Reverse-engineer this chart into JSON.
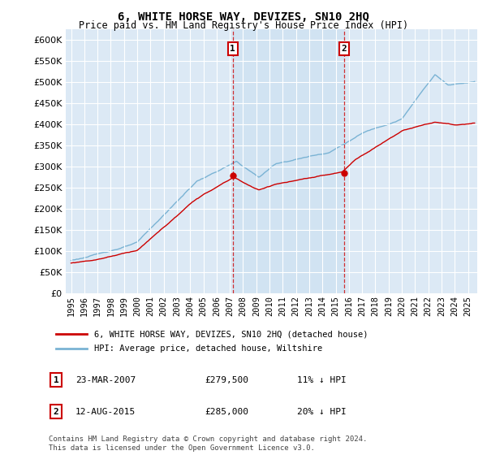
{
  "title": "6, WHITE HORSE WAY, DEVIZES, SN10 2HQ",
  "subtitle": "Price paid vs. HM Land Registry's House Price Index (HPI)",
  "ylabel_ticks": [
    0,
    50000,
    100000,
    150000,
    200000,
    250000,
    300000,
    350000,
    400000,
    450000,
    500000,
    550000,
    600000
  ],
  "ylim": [
    0,
    625000
  ],
  "xlim_start": 1994.6,
  "xlim_end": 2025.7,
  "hpi_color": "#7ab3d4",
  "hpi_fill_color": "#c8dff0",
  "property_color": "#cc0000",
  "marker1_x": 2007.22,
  "marker1_y": 279500,
  "marker2_x": 2015.62,
  "marker2_y": 285000,
  "legend_property": "6, WHITE HORSE WAY, DEVIZES, SN10 2HQ (detached house)",
  "legend_hpi": "HPI: Average price, detached house, Wiltshire",
  "annotation1_label": "1",
  "annotation1_date": "23-MAR-2007",
  "annotation1_price": "£279,500",
  "annotation1_pct": "11% ↓ HPI",
  "annotation2_label": "2",
  "annotation2_date": "12-AUG-2015",
  "annotation2_price": "£285,000",
  "annotation2_pct": "20% ↓ HPI",
  "footer": "Contains HM Land Registry data © Crown copyright and database right 2024.\nThis data is licensed under the Open Government Licence v3.0.",
  "plot_bg_color": "#dce9f5",
  "shade_between_markers": true
}
